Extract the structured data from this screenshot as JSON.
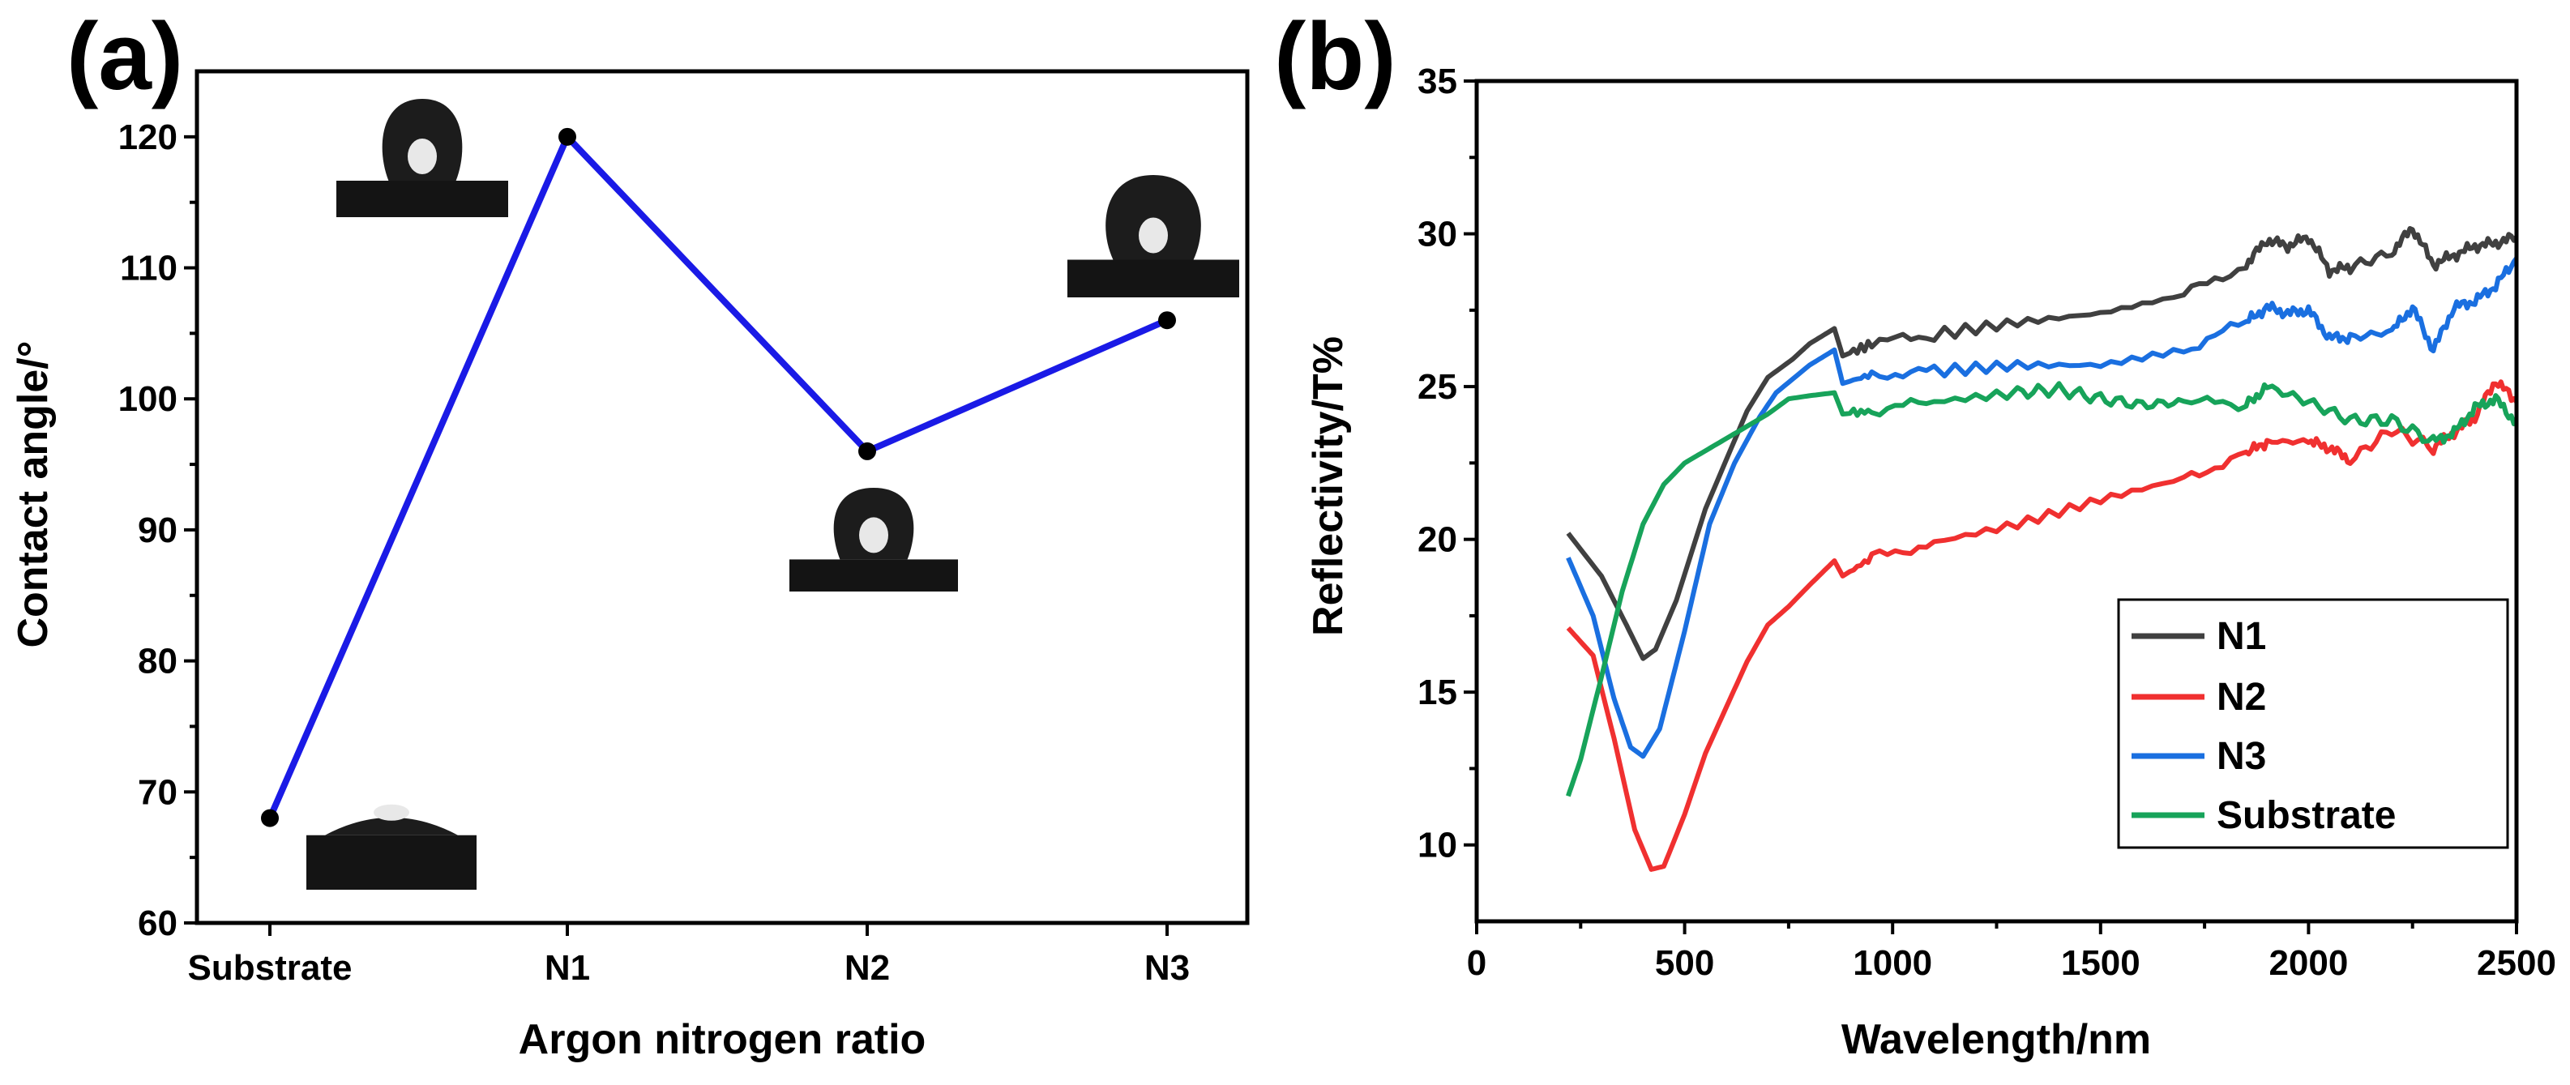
{
  "chart_data": [
    {
      "panel": "(a)",
      "type": "line",
      "xlabel": "Argon nitrogen ratio",
      "ylabel": "Contact angle/°",
      "categories": [
        "Substrate",
        "N1",
        "N2",
        "N3"
      ],
      "values": [
        68,
        120,
        96,
        106
      ],
      "ylim": [
        60,
        125
      ],
      "yticks": [
        60,
        70,
        80,
        90,
        100,
        110,
        120
      ],
      "line_color": "#1a1ae6",
      "marker_color": "#000000",
      "insets": "water droplet photographs at each data point"
    },
    {
      "panel": "(b)",
      "type": "line",
      "xlabel": "Wavelength/nm",
      "ylabel": "Reflectivity/T%",
      "xlim": [
        0,
        2500
      ],
      "ylim": [
        7.5,
        35
      ],
      "xticks": [
        0,
        500,
        1000,
        1500,
        2000,
        2500
      ],
      "yticks": [
        10,
        15,
        20,
        25,
        30,
        35
      ],
      "legend_position": "bottom-right",
      "series": [
        {
          "name": "N1",
          "color": "#404040",
          "x": [
            220,
            300,
            360,
            400,
            430,
            480,
            550,
            650,
            700,
            760,
            800,
            860,
            880,
            950,
            1100,
            1300,
            1500,
            1700,
            1850,
            1900,
            1950,
            2000,
            2050,
            2100,
            2200,
            2250,
            2300,
            2350,
            2400,
            2450,
            2500
          ],
          "y": [
            20.2,
            18.8,
            17.2,
            16.1,
            16.4,
            18.0,
            21.0,
            24.2,
            25.3,
            25.9,
            26.4,
            26.9,
            26.0,
            26.4,
            26.7,
            27.1,
            27.4,
            28.0,
            29.0,
            29.8,
            29.6,
            29.9,
            28.8,
            28.9,
            29.4,
            30.2,
            29.0,
            29.3,
            29.6,
            29.7,
            29.9
          ]
        },
        {
          "name": "N2",
          "color": "#f03030",
          "x": [
            220,
            280,
            330,
            380,
            420,
            450,
            500,
            550,
            600,
            650,
            700,
            750,
            800,
            860,
            880,
            950,
            1100,
            1300,
            1500,
            1700,
            1850,
            1900,
            2000,
            2050,
            2100,
            2200,
            2300,
            2350,
            2400,
            2450,
            2500
          ],
          "y": [
            17.1,
            16.2,
            13.5,
            10.5,
            9.2,
            9.3,
            11.0,
            13.0,
            14.5,
            16.0,
            17.2,
            17.8,
            18.5,
            19.3,
            18.8,
            19.4,
            19.9,
            20.5,
            21.3,
            22.0,
            22.8,
            23.2,
            23.2,
            23.0,
            22.6,
            23.6,
            23.0,
            23.5,
            24.0,
            25.2,
            24.5
          ]
        },
        {
          "name": "N3",
          "color": "#1a6fe0",
          "x": [
            220,
            280,
            330,
            370,
            400,
            440,
            500,
            560,
            620,
            680,
            720,
            800,
            860,
            880,
            950,
            1100,
            1300,
            1500,
            1700,
            1850,
            1900,
            1950,
            2000,
            2050,
            2100,
            2200,
            2250,
            2300,
            2350,
            2400,
            2450,
            2500
          ],
          "y": [
            19.4,
            17.5,
            14.8,
            13.2,
            12.9,
            13.8,
            17.0,
            20.5,
            22.5,
            24.0,
            24.8,
            25.7,
            26.2,
            25.1,
            25.4,
            25.5,
            25.7,
            25.7,
            26.2,
            27.1,
            27.6,
            27.4,
            27.5,
            26.6,
            26.6,
            26.8,
            27.6,
            26.2,
            27.6,
            27.8,
            28.3,
            29.2
          ]
        },
        {
          "name": "Substrate",
          "color": "#17a35a",
          "x": [
            220,
            250,
            300,
            350,
            400,
            450,
            500,
            550,
            600,
            650,
            700,
            750,
            800,
            860,
            880,
            950,
            1100,
            1300,
            1400,
            1500,
            1600,
            1700,
            1850,
            1900,
            2000,
            2100,
            2200,
            2300,
            2350,
            2400,
            2450,
            2500
          ],
          "y": [
            11.6,
            12.8,
            15.5,
            18.3,
            20.5,
            21.8,
            22.5,
            22.9,
            23.3,
            23.7,
            24.1,
            24.6,
            24.7,
            24.8,
            24.1,
            24.2,
            24.5,
            24.8,
            24.9,
            24.6,
            24.4,
            24.5,
            24.4,
            25.0,
            24.5,
            23.9,
            23.9,
            23.2,
            23.5,
            24.3,
            24.6,
            23.8
          ]
        }
      ]
    }
  ]
}
